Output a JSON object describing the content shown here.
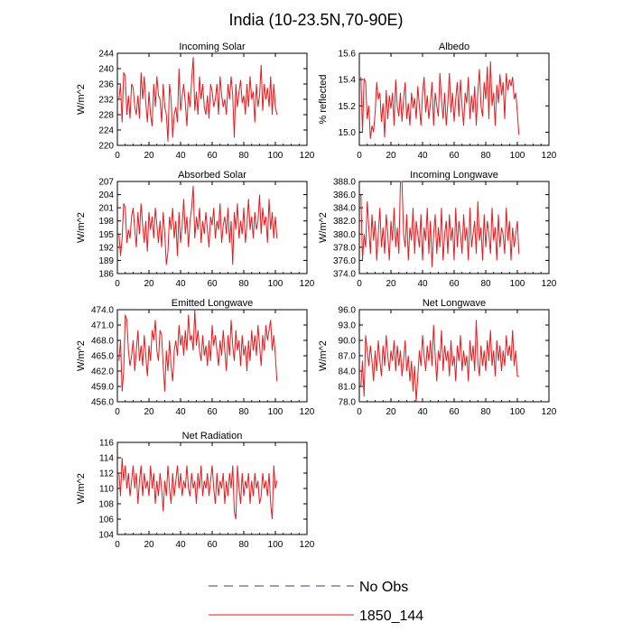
{
  "figure": {
    "title": "India (10-23.5N,70-90E)",
    "legend": [
      {
        "label": "No Obs",
        "color": "#3a3a8c",
        "style": "dashed"
      },
      {
        "label": "1850_144",
        "color": "#e8191c",
        "style": "solid"
      }
    ]
  },
  "chart_data": [
    {
      "type": "line",
      "title": "Incoming Solar",
      "ylabel": "W/m^2",
      "xlim": [
        0,
        120
      ],
      "xticks": [
        0,
        20,
        40,
        60,
        80,
        100,
        120
      ],
      "ylim": [
        220,
        244
      ],
      "yticks": [
        "220",
        "224",
        "228",
        "232",
        "236",
        "240",
        "244"
      ],
      "series": [
        {
          "name": "1850_144",
          "color": "#e8191c",
          "x0": 1,
          "dx": 1,
          "values": [
            232,
            236,
            226,
            239,
            238,
            228,
            233,
            227,
            236,
            235,
            230,
            228,
            233,
            227,
            239,
            232,
            238,
            231,
            226,
            234,
            228,
            225,
            236,
            230,
            238,
            233,
            232,
            226,
            236,
            230,
            228,
            221,
            236,
            232,
            222,
            228,
            230,
            226,
            240,
            229,
            233,
            236,
            231,
            225,
            234,
            230,
            237,
            243,
            229,
            234,
            228,
            238,
            232,
            236,
            230,
            228,
            233,
            227,
            236,
            234,
            230,
            232,
            236,
            228,
            238,
            233,
            230,
            232,
            228,
            236,
            232,
            238,
            233,
            222,
            236,
            230,
            234,
            237,
            231,
            233,
            228,
            236,
            230,
            238,
            232,
            234,
            226,
            236,
            230,
            233,
            241,
            229,
            236,
            232,
            235,
            230,
            238,
            228,
            236,
            230,
            228
          ]
        }
      ]
    },
    {
      "type": "line",
      "title": "Albedo",
      "ylabel": "% reflected",
      "xlim": [
        0,
        120
      ],
      "xticks": [
        0,
        20,
        40,
        60,
        80,
        100,
        120
      ],
      "ylim": [
        14.9,
        15.6
      ],
      "yticks": [
        "15.0",
        "15.2",
        "15.4",
        "15.6"
      ],
      "series": [
        {
          "name": "1850_144",
          "color": "#e8191c",
          "x0": 1,
          "dx": 1,
          "values": [
            15.42,
            15.0,
            15.41,
            15.38,
            15.1,
            15.2,
            14.95,
            15.05,
            15.0,
            15.15,
            15.38,
            15.25,
            15.3,
            15.08,
            15.22,
            14.96,
            15.32,
            15.1,
            15.28,
            15.18,
            15.3,
            15.05,
            15.4,
            15.2,
            15.12,
            15.3,
            15.08,
            15.25,
            15.38,
            15.1,
            15.22,
            15.05,
            15.3,
            15.18,
            15.26,
            15.1,
            15.35,
            15.2,
            15.05,
            15.3,
            15.42,
            15.15,
            15.28,
            15.1,
            15.22,
            15.38,
            15.05,
            15.3,
            15.2,
            15.12,
            15.45,
            15.25,
            15.1,
            15.3,
            15.05,
            15.22,
            15.45,
            15.15,
            15.3,
            15.08,
            15.25,
            15.38,
            15.12,
            15.4,
            15.2,
            15.05,
            15.3,
            15.22,
            15.42,
            15.1,
            15.28,
            15.15,
            15.35,
            15.05,
            15.3,
            15.48,
            15.2,
            15.12,
            15.38,
            15.25,
            15.5,
            15.1,
            15.54,
            15.2,
            15.3,
            15.05,
            15.36,
            15.22,
            15.44,
            15.28,
            15.38,
            15.1,
            15.45,
            15.32,
            15.4,
            15.35,
            15.42,
            15.25,
            15.3,
            15.15,
            14.98
          ]
        }
      ]
    },
    {
      "type": "line",
      "title": "Absorbed Solar",
      "ylabel": "W/m^2",
      "xlim": [
        0,
        120
      ],
      "xticks": [
        0,
        20,
        40,
        60,
        80,
        100,
        120
      ],
      "ylim": [
        186,
        207
      ],
      "yticks": [
        "186",
        "189",
        "192",
        "195",
        "198",
        "201",
        "204",
        "207"
      ],
      "series": [
        {
          "name": "1850_144",
          "color": "#e8191c",
          "x0": 1,
          "dx": 1,
          "values": [
            195,
            190,
            194,
            202,
            201,
            193,
            196,
            194,
            199,
            201,
            196,
            192,
            200,
            195,
            202,
            197,
            193,
            198,
            191,
            200,
            196,
            199,
            194,
            201,
            197,
            193,
            198,
            192,
            200,
            195,
            188,
            191,
            199,
            196,
            201,
            194,
            198,
            190,
            200,
            193,
            197,
            203,
            195,
            199,
            192,
            198,
            201,
            206,
            194,
            199,
            196,
            201,
            193,
            198,
            195,
            200,
            196,
            192,
            199,
            197,
            201,
            194,
            198,
            196,
            202,
            193,
            197,
            199,
            195,
            201,
            193,
            198,
            188,
            200,
            196,
            202,
            194,
            198,
            195,
            201,
            193,
            197,
            203,
            196,
            199,
            194,
            200,
            196,
            198,
            204,
            195,
            201,
            197,
            199,
            193,
            203,
            196,
            200,
            194,
            199,
            194
          ]
        }
      ]
    },
    {
      "type": "line",
      "title": "Incoming Longwave",
      "ylabel": "W/m^2",
      "xlim": [
        0,
        120
      ],
      "xticks": [
        0,
        20,
        40,
        60,
        80,
        100,
        120
      ],
      "ylim": [
        374,
        388
      ],
      "yticks": [
        "374.0",
        "376.0",
        "378.0",
        "380.0",
        "382.0",
        "384.0",
        "386.0",
        "388.0"
      ],
      "series": [
        {
          "name": "1850_144",
          "color": "#e8191c",
          "x0": 1,
          "dx": 1,
          "values": [
            386,
            376,
            380,
            378,
            385,
            381,
            377,
            383,
            379,
            382,
            376,
            380,
            384,
            378,
            381,
            377,
            383,
            380,
            376,
            382,
            379,
            384,
            378,
            381,
            377,
            388,
            388,
            380,
            378,
            383,
            376,
            381,
            379,
            384,
            377,
            382,
            380,
            378,
            383,
            376,
            381,
            379,
            384,
            377,
            382,
            375,
            380,
            383,
            377,
            381,
            378,
            384,
            376,
            380,
            382,
            377,
            383,
            379,
            381,
            376,
            384,
            378,
            382,
            380,
            377,
            383,
            379,
            381,
            376,
            384,
            378,
            380,
            382,
            377,
            385,
            379,
            381,
            376,
            383,
            378,
            382,
            380,
            377,
            384,
            379,
            381,
            376,
            383,
            378,
            381,
            380,
            377,
            384,
            379,
            382,
            376,
            381,
            378,
            380,
            382,
            377
          ]
        }
      ]
    },
    {
      "type": "line",
      "title": "Emitted Longwave",
      "ylabel": "W/m^2",
      "xlim": [
        0,
        120
      ],
      "xticks": [
        0,
        20,
        40,
        60,
        80,
        100,
        120
      ],
      "ylim": [
        456,
        474
      ],
      "yticks": [
        "456.0",
        "459.0",
        "462.0",
        "465.0",
        "468.0",
        "471.0",
        "474.0"
      ],
      "series": [
        {
          "name": "1850_144",
          "color": "#e8191c",
          "x0": 1,
          "dx": 1,
          "values": [
            464,
            468,
            458,
            462,
            473,
            472,
            466,
            463,
            465,
            468,
            462,
            466,
            470,
            464,
            467,
            463,
            469,
            465,
            461,
            467,
            464,
            470,
            468,
            472,
            466,
            464,
            470,
            469,
            463,
            458,
            466,
            462,
            468,
            463,
            460,
            466,
            468,
            465,
            471,
            467,
            469,
            465,
            470,
            466,
            473,
            468,
            469,
            466,
            474,
            467,
            470,
            466,
            464,
            469,
            465,
            467,
            463,
            468,
            464,
            471,
            467,
            469,
            466,
            463,
            468,
            465,
            470,
            466,
            462,
            469,
            465,
            472,
            467,
            464,
            470,
            466,
            468,
            463,
            469,
            465,
            467,
            462,
            468,
            464,
            470,
            466,
            469,
            465,
            471,
            467,
            463,
            469,
            466,
            471,
            468,
            470,
            472,
            466,
            469,
            465,
            460
          ]
        }
      ]
    },
    {
      "type": "line",
      "title": "Net Longwave",
      "ylabel": "W/m^2",
      "xlim": [
        0,
        120
      ],
      "xticks": [
        0,
        20,
        40,
        60,
        80,
        100,
        120
      ],
      "ylim": [
        78,
        96
      ],
      "yticks": [
        "78.0",
        "81.0",
        "84.0",
        "87.0",
        "90.0",
        "93.0",
        "96.0"
      ],
      "series": [
        {
          "name": "1850_144",
          "color": "#e8191c",
          "x0": 1,
          "dx": 1,
          "values": [
            81,
            86,
            79,
            91,
            88,
            85,
            89,
            86,
            82,
            88,
            84,
            90,
            86,
            83,
            89,
            85,
            91,
            87,
            84,
            88,
            86,
            90,
            84,
            89,
            85,
            88,
            83,
            86,
            90,
            84,
            87,
            82,
            86,
            80,
            85,
            78,
            83,
            88,
            85,
            91,
            87,
            84,
            89,
            86,
            90,
            85,
            93,
            87,
            82,
            88,
            86,
            92,
            84,
            89,
            86,
            88,
            83,
            90,
            85,
            87,
            82,
            89,
            86,
            91,
            84,
            88,
            85,
            87,
            82,
            90,
            86,
            89,
            84,
            94,
            86,
            83,
            89,
            85,
            88,
            84,
            90,
            86,
            92,
            85,
            88,
            83,
            90,
            86,
            89,
            84,
            88,
            85,
            91,
            87,
            89,
            86,
            92,
            85,
            88,
            83,
            83
          ]
        }
      ]
    },
    {
      "type": "line",
      "title": "Net Radiation",
      "ylabel": "W/m^2",
      "xlim": [
        0,
        120
      ],
      "xticks": [
        0,
        20,
        40,
        60,
        80,
        100,
        120
      ],
      "ylim": [
        104,
        116
      ],
      "yticks": [
        "104",
        "106",
        "108",
        "110",
        "112",
        "114",
        "116"
      ],
      "series": [
        {
          "name": "1850_144",
          "color": "#e8191c",
          "x0": 1,
          "dx": 1,
          "values": [
            112,
            109,
            114,
            111,
            113,
            110,
            112,
            109,
            111,
            113,
            110,
            112,
            108,
            111,
            113,
            109,
            112,
            110,
            111,
            109,
            113,
            110,
            112,
            108,
            111,
            109,
            112,
            110,
            107,
            111,
            109,
            113,
            110,
            108,
            112,
            109,
            111,
            113,
            110,
            112,
            109,
            111,
            110,
            113,
            110,
            109,
            112,
            110,
            111,
            108,
            112,
            110,
            113,
            109,
            111,
            110,
            112,
            109,
            111,
            113,
            110,
            108,
            112,
            109,
            111,
            110,
            112,
            108,
            111,
            109,
            112,
            110,
            113,
            107,
            106,
            113,
            110,
            108,
            112,
            109,
            111,
            110,
            112,
            108,
            111,
            109,
            112,
            110,
            111,
            108,
            109,
            112,
            110,
            111,
            109,
            112,
            108,
            106,
            113,
            110,
            111
          ]
        }
      ]
    }
  ]
}
